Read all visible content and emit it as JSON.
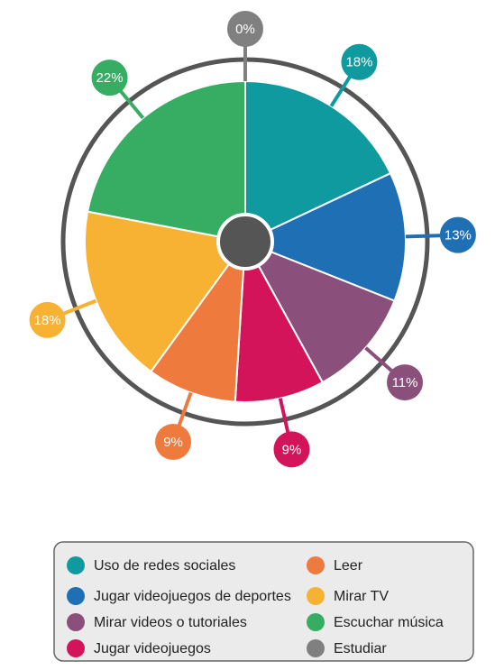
{
  "chart_data": {
    "type": "pie",
    "categories": [
      "Uso de redes sociales",
      "Jugar videojuegos de deportes",
      "Mirar videos o tutoriales",
      "Jugar videojuegos",
      "Leer",
      "Mirar TV",
      "Escuchar música",
      "Estudiar"
    ],
    "values": [
      18,
      13,
      11,
      9,
      9,
      18,
      22,
      0
    ],
    "value_labels": [
      "18%",
      "13%",
      "11%",
      "9%",
      "9%",
      "18%",
      "22%",
      "0%"
    ],
    "colors": [
      "#0e9a9e",
      "#1f6fb5",
      "#8b4f7b",
      "#d4145a",
      "#ef7a3e",
      "#f7b233",
      "#37ad64",
      "#808080"
    ]
  }
}
